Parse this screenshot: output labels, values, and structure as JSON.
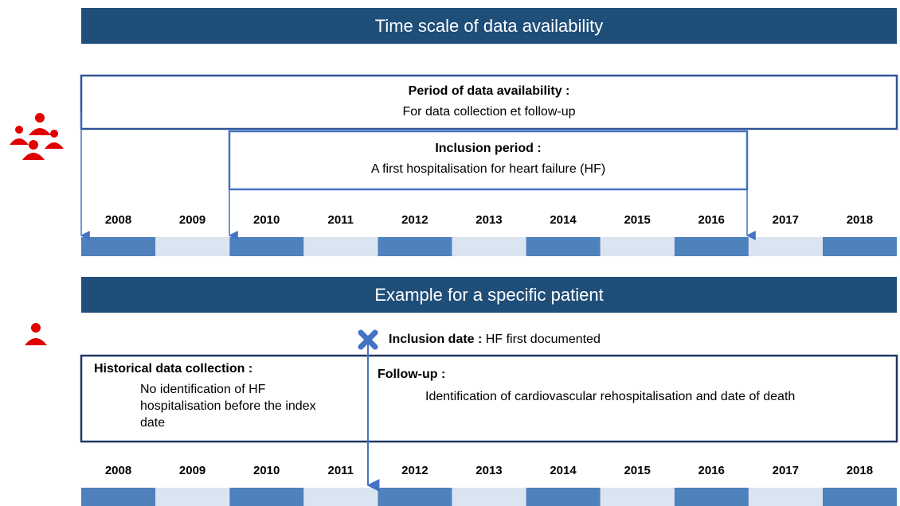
{
  "header": {
    "title": "Time scale of data availability"
  },
  "availability": {
    "title": "Period of data availability :",
    "text": "For data collection et follow-up"
  },
  "inclusion_period": {
    "title": "Inclusion period :",
    "text": "A first hospitalisation for heart failure (HF)"
  },
  "timeline_1": {
    "years": [
      2008,
      2009,
      2010,
      2011,
      2012,
      2013,
      2014,
      2015,
      2016,
      2017,
      2018
    ]
  },
  "example": {
    "title": "Example for a specific patient"
  },
  "inclusion_date": {
    "label": "Inclusion date :",
    "text": "HF first documented"
  },
  "historical": {
    "title": "Historical data collection :",
    "text": "No identification of HF hospitalisation before the index date"
  },
  "follow_up": {
    "title": "Follow-up :",
    "text": "Identification of cardiovascular rehospitalisation and date of death"
  },
  "timeline_2": {
    "years": [
      2008,
      2009,
      2010,
      2011,
      2012,
      2013,
      2014,
      2015,
      2016,
      2017,
      2018
    ]
  }
}
